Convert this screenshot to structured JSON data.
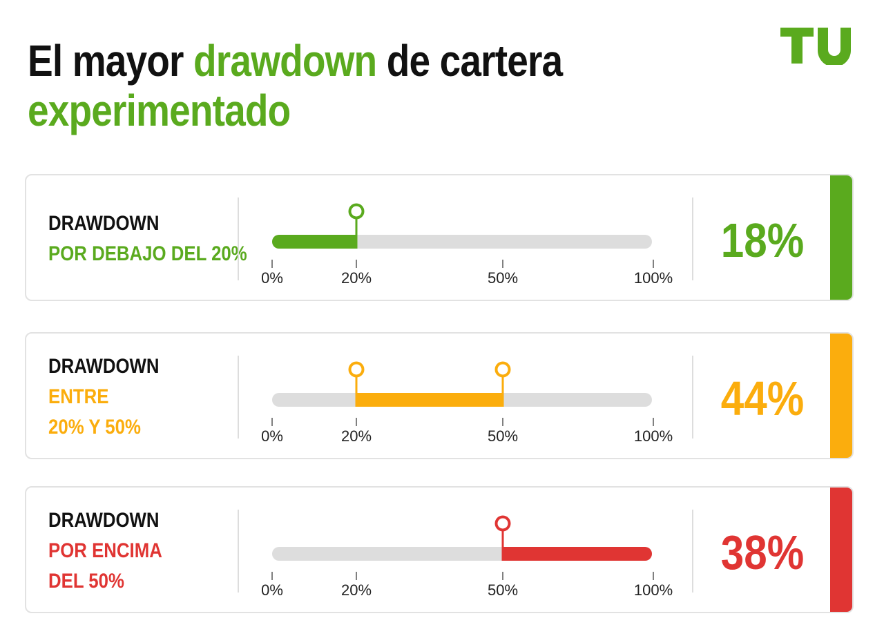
{
  "title": {
    "part1": "El mayor ",
    "highlight": "drawdown",
    "part2": " de cartera",
    "line2": "experimentado"
  },
  "logo": {
    "text": "TU"
  },
  "colors": {
    "green": "#5aaa1e",
    "orange": "#fbad0d",
    "red": "#e03533",
    "track": "#dddddd",
    "title": "#111111"
  },
  "chart_data": {
    "type": "bar",
    "title": "El mayor drawdown de cartera experimentado",
    "axis_ticks": [
      0,
      20,
      50,
      100
    ],
    "axis_tick_labels": [
      "0%",
      "20%",
      "50%",
      "100%"
    ],
    "xlim": [
      0,
      100
    ],
    "rows": [
      {
        "label_line1": "DRAWDOWN",
        "label_line2": "POR DEBAJO DEL 20%",
        "label_line3": "",
        "range": [
          0,
          20
        ],
        "markers": [
          20
        ],
        "value": 18,
        "value_label": "18%",
        "color": "#5aaa1e"
      },
      {
        "label_line1": "DRAWDOWN",
        "label_line2": "ENTRE",
        "label_line3": "20% Y 50%",
        "range": [
          20,
          50
        ],
        "markers": [
          20,
          50
        ],
        "value": 44,
        "value_label": "44%",
        "color": "#fbad0d"
      },
      {
        "label_line1": "DRAWDOWN",
        "label_line2": "POR ENCIMA",
        "label_line3": "DEL 50%",
        "range": [
          50,
          100
        ],
        "markers": [
          50
        ],
        "value": 38,
        "value_label": "38%",
        "color": "#e03533"
      }
    ]
  }
}
